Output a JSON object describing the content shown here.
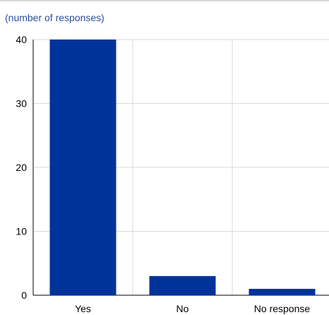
{
  "colors": {
    "bar": "#003399",
    "grid": "#d9d9d9",
    "axis": "#000000",
    "subtitle": "#2b4f9e"
  },
  "chart_data": {
    "type": "bar",
    "subtitle": "(number of responses)",
    "categories": [
      "Yes",
      "No",
      "No response"
    ],
    "values": [
      40,
      3,
      1
    ],
    "ylim": [
      0,
      40
    ],
    "yticks": [
      0,
      10,
      20,
      30,
      40
    ],
    "grid": true,
    "legend": "none"
  }
}
